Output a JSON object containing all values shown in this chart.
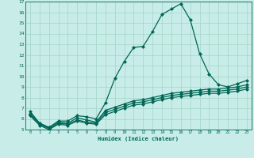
{
  "xlabel": "Humidex (Indice chaleur)",
  "ylabel": "",
  "xlim": [
    -0.5,
    23.5
  ],
  "ylim": [
    5,
    17
  ],
  "yticks": [
    5,
    6,
    7,
    8,
    9,
    10,
    11,
    12,
    13,
    14,
    15,
    16,
    17
  ],
  "xticks": [
    0,
    1,
    2,
    3,
    4,
    5,
    6,
    7,
    8,
    9,
    10,
    11,
    12,
    13,
    14,
    15,
    16,
    17,
    18,
    19,
    20,
    21,
    22,
    23
  ],
  "background_color": "#c8ede8",
  "grid_color": "#a8d8cc",
  "line_color": "#006655",
  "lines": [
    {
      "x": [
        0,
        1,
        2,
        3,
        4,
        5,
        6,
        7,
        8,
        9,
        10,
        11,
        12,
        13,
        14,
        15,
        16,
        17,
        18,
        19,
        20,
        21,
        22,
        23
      ],
      "y": [
        6.7,
        5.6,
        5.2,
        5.8,
        5.8,
        6.3,
        6.2,
        6.0,
        7.5,
        9.8,
        11.4,
        12.7,
        12.8,
        14.2,
        15.8,
        16.3,
        16.8,
        15.3,
        12.1,
        10.2,
        9.2,
        9.0,
        9.3,
        9.6
      ],
      "marker": "D",
      "markersize": 2.0,
      "linewidth": 0.9
    },
    {
      "x": [
        0,
        1,
        2,
        3,
        4,
        5,
        6,
        7,
        8,
        9,
        10,
        11,
        12,
        13,
        14,
        15,
        16,
        17,
        18,
        19,
        20,
        21,
        22,
        23
      ],
      "y": [
        6.5,
        5.6,
        5.2,
        5.7,
        5.6,
        6.1,
        5.9,
        5.7,
        6.8,
        7.1,
        7.4,
        7.7,
        7.8,
        8.0,
        8.2,
        8.4,
        8.5,
        8.6,
        8.7,
        8.8,
        8.8,
        8.9,
        9.0,
        9.2
      ],
      "marker": "D",
      "markersize": 2.0,
      "linewidth": 0.9
    },
    {
      "x": [
        0,
        1,
        2,
        3,
        4,
        5,
        6,
        7,
        8,
        9,
        10,
        11,
        12,
        13,
        14,
        15,
        16,
        17,
        18,
        19,
        20,
        21,
        22,
        23
      ],
      "y": [
        6.4,
        5.5,
        5.1,
        5.6,
        5.5,
        5.9,
        5.7,
        5.6,
        6.6,
        6.9,
        7.2,
        7.5,
        7.6,
        7.8,
        8.0,
        8.2,
        8.3,
        8.4,
        8.5,
        8.6,
        8.6,
        8.7,
        8.8,
        9.0
      ],
      "marker": "D",
      "markersize": 2.0,
      "linewidth": 0.9
    },
    {
      "x": [
        0,
        1,
        2,
        3,
        4,
        5,
        6,
        7,
        8,
        9,
        10,
        11,
        12,
        13,
        14,
        15,
        16,
        17,
        18,
        19,
        20,
        21,
        22,
        23
      ],
      "y": [
        6.3,
        5.4,
        5.0,
        5.5,
        5.4,
        5.8,
        5.6,
        5.5,
        6.4,
        6.7,
        7.0,
        7.3,
        7.4,
        7.6,
        7.8,
        8.0,
        8.1,
        8.2,
        8.3,
        8.4,
        8.4,
        8.5,
        8.6,
        8.8
      ],
      "marker": "D",
      "markersize": 2.0,
      "linewidth": 0.9
    }
  ]
}
